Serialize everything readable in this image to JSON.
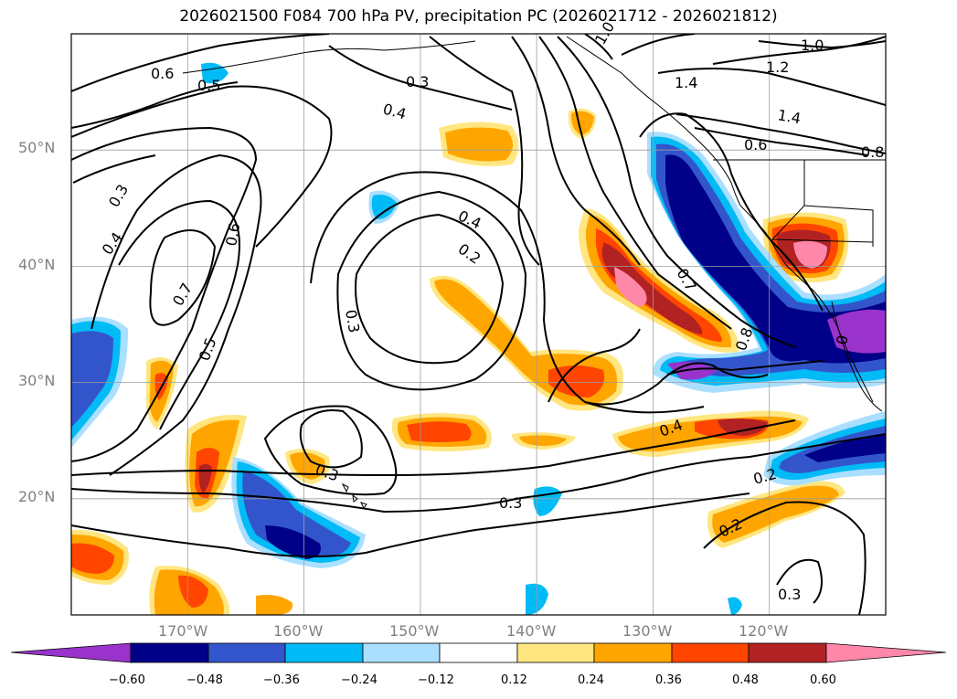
{
  "title": "2026021500 F084 700 hPa PV, precipitation PC (2026021712 - 2026021812)",
  "map": {
    "projection": "cylindrical",
    "lon_range": [
      -180,
      -110
    ],
    "lat_range": [
      10,
      60
    ],
    "lat_labels": [
      "50°N",
      "40°N",
      "30°N",
      "20°N"
    ],
    "lon_labels": [
      "170°W",
      "160°W",
      "150°W",
      "140°W",
      "130°W",
      "120°W"
    ],
    "grid": true
  },
  "contour_labels": [
    "0.6",
    "0.5",
    "0.3",
    "0.4",
    "1.0",
    "1.4",
    "1.2",
    "1.0",
    "1.4",
    "0.6",
    "0.8",
    "0.3",
    "0.4",
    "0.6",
    "0.7",
    "0.5",
    "0.4",
    "0.2",
    "0.3",
    "0.7",
    "0.8",
    "0",
    "0.4",
    "0.2",
    "0.3",
    "0.3",
    "0.2",
    "0.3"
  ],
  "colorbar": {
    "ticks": [
      "−0.60",
      "−0.48",
      "−0.36",
      "−0.24",
      "−0.12",
      "0.12",
      "0.24",
      "0.36",
      "0.48",
      "0.60"
    ],
    "colors": [
      "#9933cc",
      "#000088",
      "#3355cc",
      "#00bbf5",
      "#aadfff",
      "#ffffff",
      "#ffe680",
      "#ffa500",
      "#ff4500",
      "#b22222",
      "#ff88aa"
    ],
    "extend": "both"
  }
}
